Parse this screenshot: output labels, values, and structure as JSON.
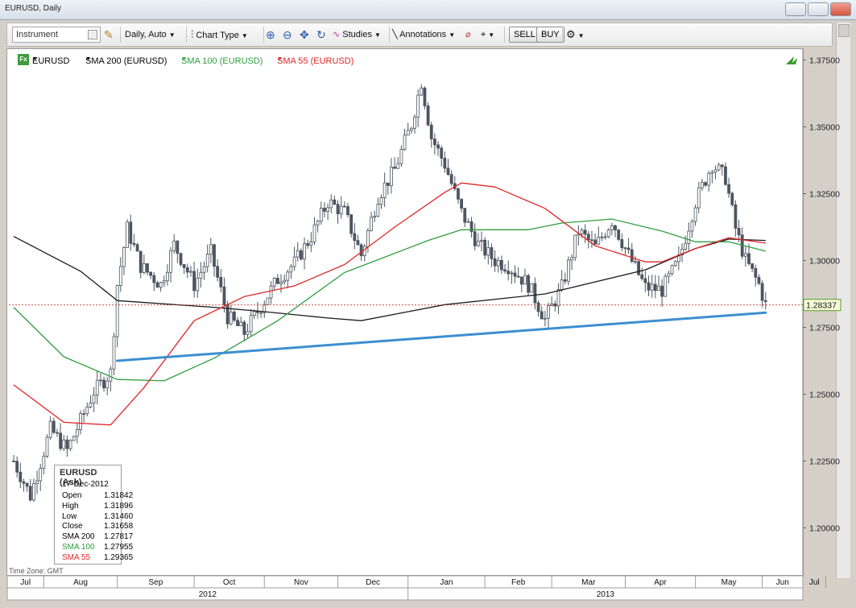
{
  "window": {
    "title": "EURUSD, Daily"
  },
  "toolbar": {
    "instrument_placeholder": "Instrument",
    "timeframe": "Daily,  Auto",
    "chart_type": "Chart Type",
    "studies": "Studies",
    "annotations": "Annotations",
    "sell": "SELL",
    "buy": "BUY"
  },
  "legend": {
    "symbol": "EURUSD",
    "sma200": "SMA 200 (EURUSD)",
    "sma100": "SMA 100 (EURUSD)",
    "sma55": "SMA 55 (EURUSD)"
  },
  "colors": {
    "sma200": "#1a1a1a",
    "sma100": "#2e9e3e",
    "sma55": "#e02626",
    "trendline": "#3c8fd0",
    "candle": "#4d5560",
    "price_line": "#c0392b"
  },
  "infobox": {
    "title": "EURUSD (Ask)",
    "date": "17-Dec-2012",
    "rows": [
      {
        "label": "Open",
        "value": "1.31842"
      },
      {
        "label": "High",
        "value": "1.31896"
      },
      {
        "label": "Low",
        "value": "1.31460"
      },
      {
        "label": "Close",
        "value": "1.31658"
      },
      {
        "label": "SMA 200",
        "value": "1.27817"
      },
      {
        "label": "SMA 100",
        "value": "1.27955"
      },
      {
        "label": "SMA 55",
        "value": "1.29365"
      }
    ]
  },
  "timezone": "Time Zone: GMT",
  "current_price": "1.28337",
  "chart_data": {
    "type": "candlestick",
    "y_ticks": [
      "1.37500",
      "1.35000",
      "1.32500",
      "1.30000",
      "1.27500",
      "1.25000",
      "1.22500",
      "1.20000"
    ],
    "ylim": [
      1.1875,
      1.3825
    ],
    "months": [
      "Jul",
      "Aug",
      "Sep",
      "Oct",
      "Nov",
      "Dec",
      "Jan",
      "Feb",
      "Mar",
      "Apr",
      "May",
      "Jun",
      "Jul"
    ],
    "years": [
      "2012",
      "2013"
    ],
    "price_path": [
      [
        0,
        1.225
      ],
      [
        5,
        1.212
      ],
      [
        11,
        1.237
      ],
      [
        16,
        1.229
      ],
      [
        24,
        1.251
      ],
      [
        29,
        1.258
      ],
      [
        31,
        1.291
      ],
      [
        34,
        1.312
      ],
      [
        38,
        1.298
      ],
      [
        44,
        1.291
      ],
      [
        48,
        1.306
      ],
      [
        54,
        1.291
      ],
      [
        59,
        1.303
      ],
      [
        64,
        1.279
      ],
      [
        69,
        1.273
      ],
      [
        74,
        1.283
      ],
      [
        79,
        1.293
      ],
      [
        84,
        1.299
      ],
      [
        89,
        1.309
      ],
      [
        94,
        1.322
      ],
      [
        99,
        1.318
      ],
      [
        104,
        1.302
      ],
      [
        109,
        1.324
      ],
      [
        114,
        1.334
      ],
      [
        119,
        1.351
      ],
      [
        122,
        1.367
      ],
      [
        125,
        1.346
      ],
      [
        129,
        1.336
      ],
      [
        134,
        1.318
      ],
      [
        139,
        1.306
      ],
      [
        144,
        1.3
      ],
      [
        148,
        1.298
      ],
      [
        154,
        1.291
      ],
      [
        159,
        1.278
      ],
      [
        164,
        1.29
      ],
      [
        169,
        1.311
      ],
      [
        174,
        1.305
      ],
      [
        179,
        1.315
      ],
      [
        184,
        1.302
      ],
      [
        189,
        1.29
      ],
      [
        194,
        1.289
      ],
      [
        199,
        1.3
      ],
      [
        204,
        1.322
      ],
      [
        209,
        1.336
      ],
      [
        213,
        1.331
      ],
      [
        216,
        1.312
      ],
      [
        219,
        1.3
      ],
      [
        223,
        1.291
      ],
      [
        225,
        1.28337
      ]
    ],
    "sma200": [
      [
        0,
        1.309
      ],
      [
        20,
        1.296
      ],
      [
        31,
        1.285
      ],
      [
        60,
        1.2825
      ],
      [
        74,
        1.281
      ],
      [
        94,
        1.2785
      ],
      [
        104,
        1.2775
      ],
      [
        129,
        1.2835
      ],
      [
        159,
        1.2875
      ],
      [
        189,
        1.2965
      ],
      [
        204,
        1.3045
      ],
      [
        214,
        1.308
      ],
      [
        225,
        1.3075
      ]
    ],
    "sma100": [
      [
        0,
        1.2825
      ],
      [
        15,
        1.264
      ],
      [
        31,
        1.2555
      ],
      [
        45,
        1.255
      ],
      [
        60,
        1.2635
      ],
      [
        79,
        1.2775
      ],
      [
        99,
        1.2955
      ],
      [
        124,
        1.3075
      ],
      [
        134,
        1.3115
      ],
      [
        154,
        1.3115
      ],
      [
        164,
        1.314
      ],
      [
        179,
        1.3155
      ],
      [
        194,
        1.311
      ],
      [
        204,
        1.307
      ],
      [
        214,
        1.307
      ],
      [
        225,
        1.3035
      ]
    ],
    "sma55": [
      [
        0,
        1.2535
      ],
      [
        15,
        1.2395
      ],
      [
        29,
        1.2385
      ],
      [
        39,
        1.2525
      ],
      [
        54,
        1.2775
      ],
      [
        69,
        1.2865
      ],
      [
        84,
        1.2905
      ],
      [
        99,
        1.2985
      ],
      [
        114,
        1.3125
      ],
      [
        129,
        1.3255
      ],
      [
        134,
        1.329
      ],
      [
        144,
        1.3275
      ],
      [
        159,
        1.3195
      ],
      [
        174,
        1.3055
      ],
      [
        189,
        1.2995
      ],
      [
        194,
        1.2995
      ],
      [
        204,
        1.3045
      ],
      [
        214,
        1.3085
      ],
      [
        225,
        1.3065
      ]
    ],
    "trendline": [
      [
        31,
        1.2625
      ],
      [
        225,
        1.2805
      ]
    ]
  }
}
